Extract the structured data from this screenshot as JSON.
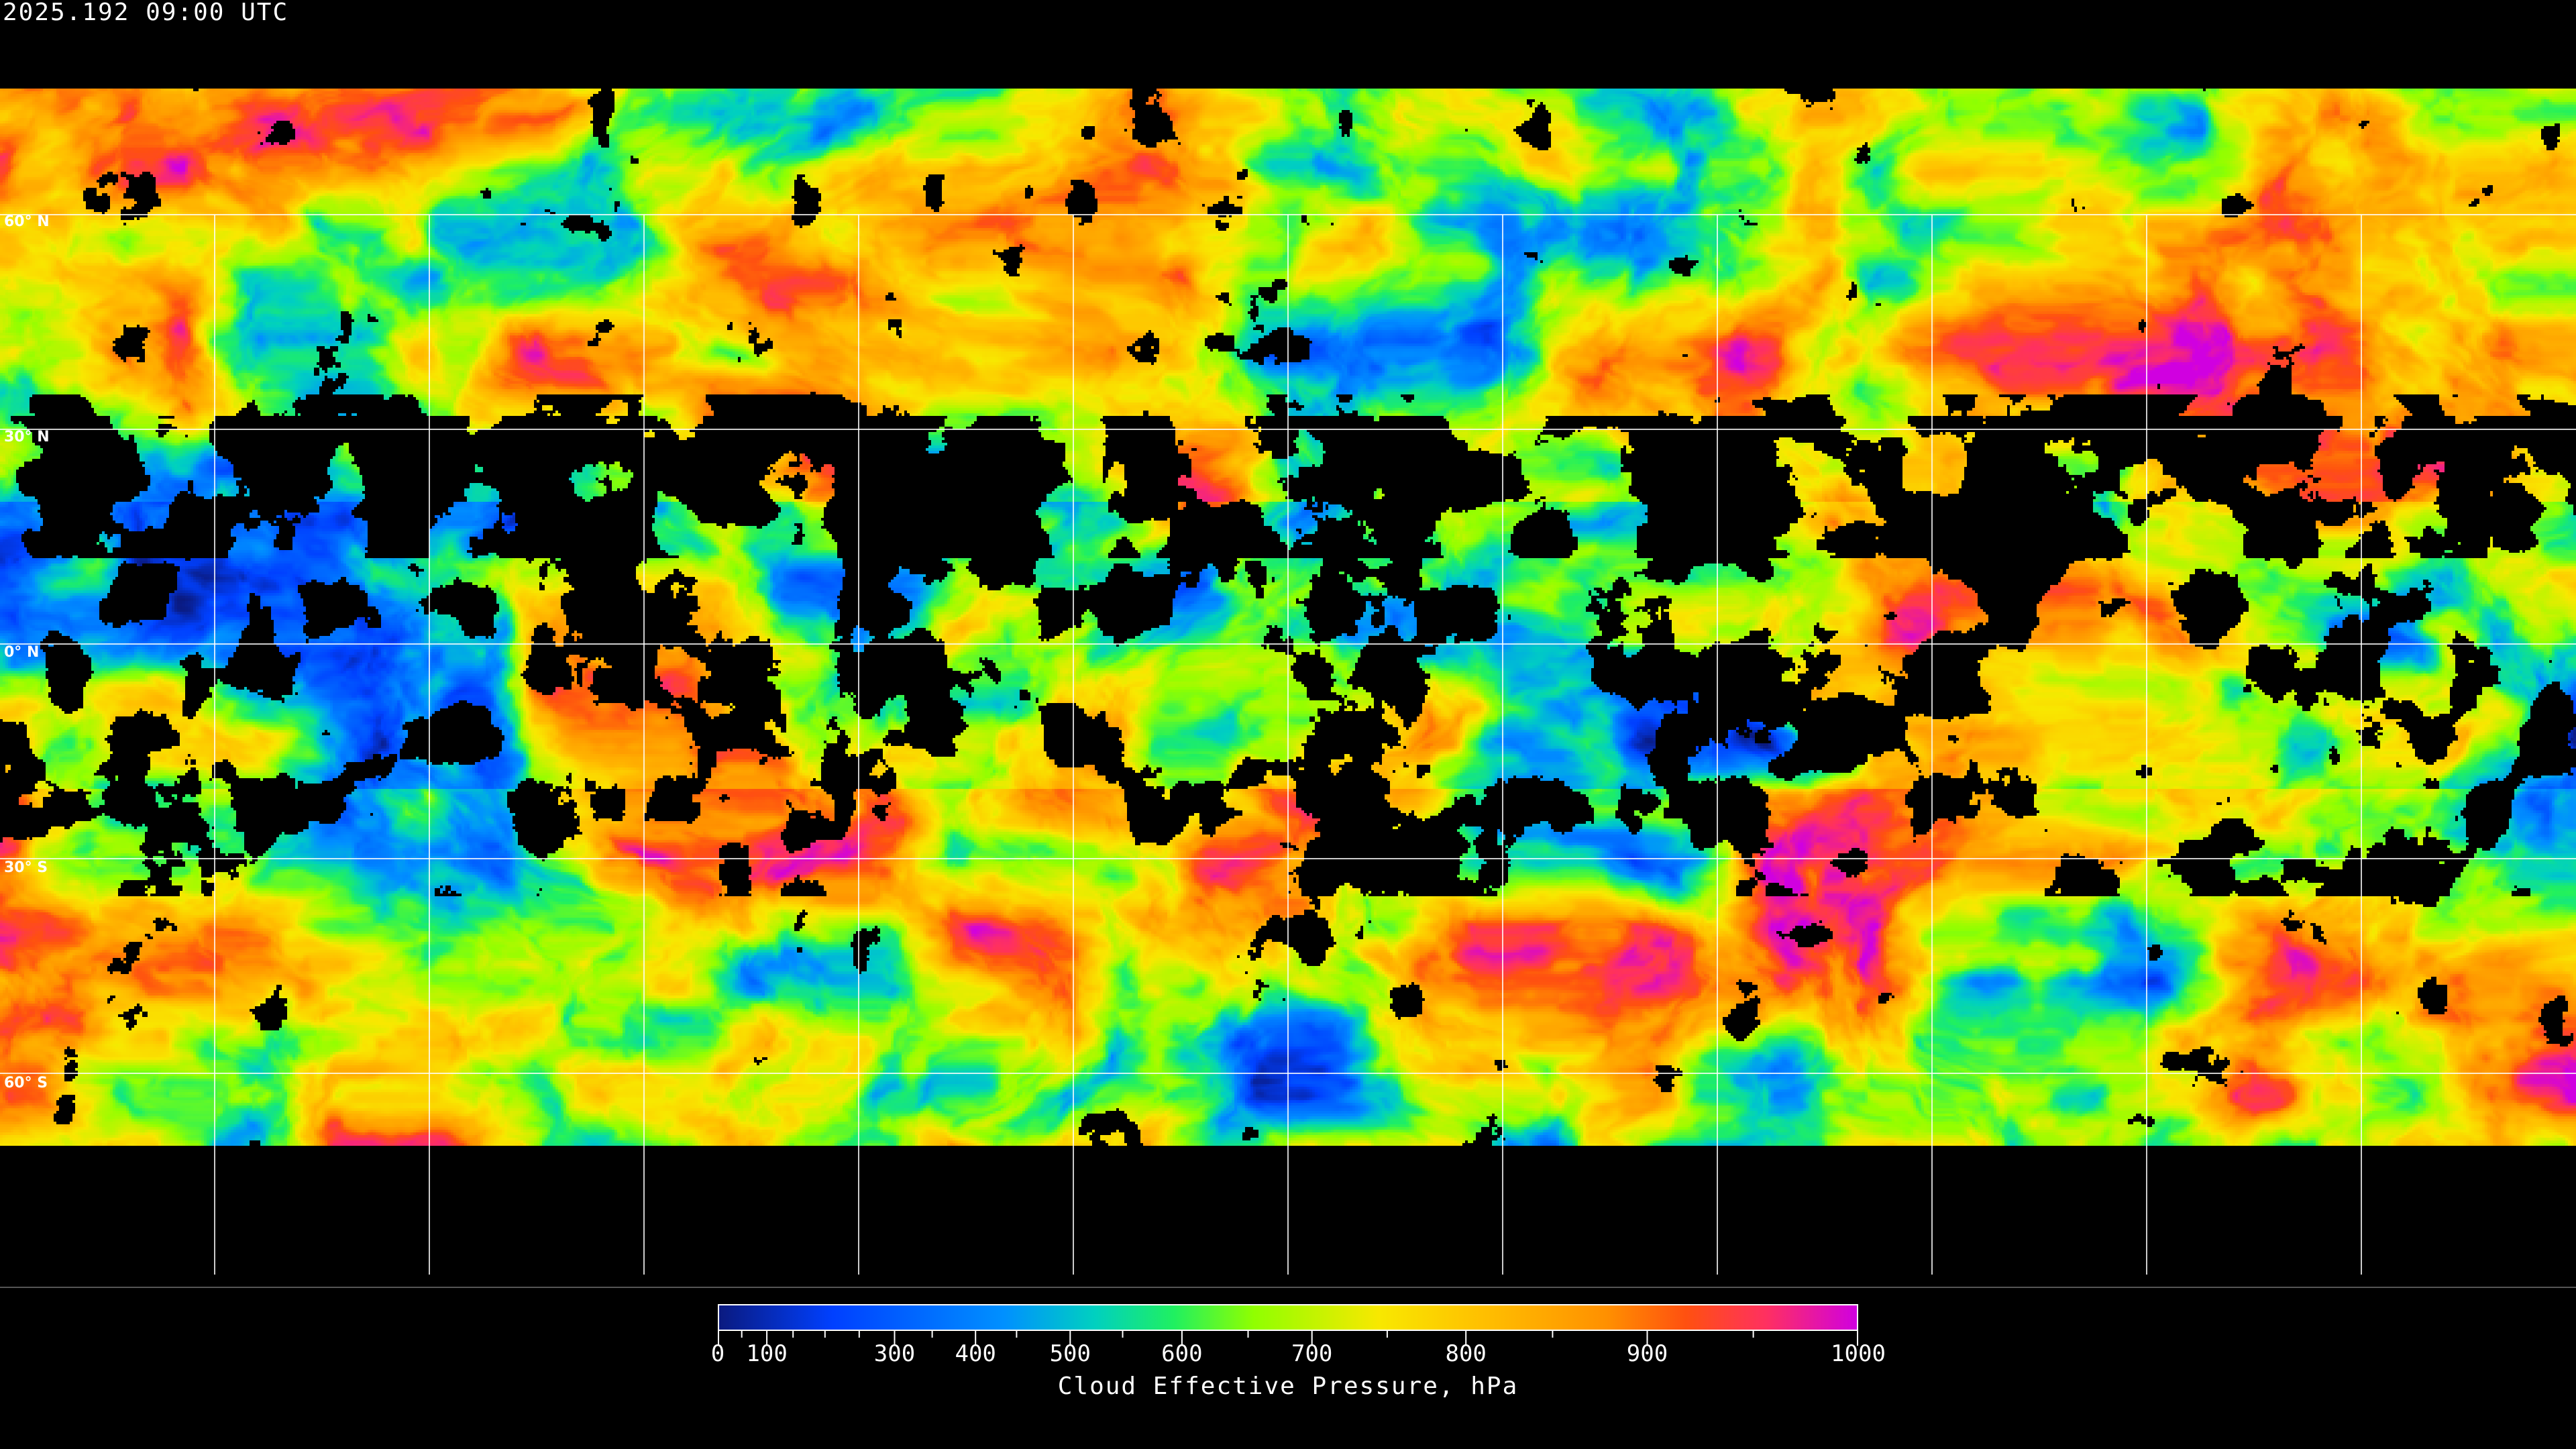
{
  "header": {
    "timestamp": "2025.192 09:00 UTC"
  },
  "map": {
    "projection": "equirectangular",
    "graticule_spacing_deg": 30,
    "lat_labels": [
      "60° N",
      "30° N",
      "0° N",
      "30° S",
      "60° S"
    ],
    "lat_values": [
      60,
      30,
      0,
      -30,
      -60
    ],
    "background": "#000000",
    "gridline_color": "#ffffff"
  },
  "colorbar": {
    "title": "Cloud Effective Pressure, hPa",
    "min": 0,
    "max": 1000,
    "tick_labels": [
      "0",
      "100",
      "300",
      "400",
      "500",
      "600",
      "700",
      "800",
      "900",
      "1000"
    ],
    "tick_values": [
      0,
      100,
      300,
      400,
      500,
      600,
      700,
      800,
      900,
      1000
    ],
    "colors": [
      "#0a1a80",
      "#0040ff",
      "#0090ff",
      "#00d0c0",
      "#20f060",
      "#90ff00",
      "#f8e800",
      "#ffc000",
      "#ff9000",
      "#ff5010",
      "#ff3060",
      "#d000e0"
    ]
  }
}
